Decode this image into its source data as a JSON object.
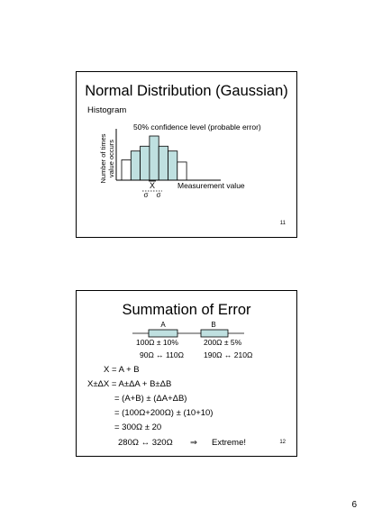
{
  "slide1": {
    "title": "Normal Distribution (Gaussian)",
    "subtitle": "Histogram",
    "annotation": "50% confidence level (probable error)",
    "ylabel_line1": "Number of times",
    "ylabel_line2": "value occurs",
    "xlabel": "Measurement value",
    "mean_symbol": "X",
    "sigma_symbol": "σ",
    "bars": [
      {
        "level": 0.46,
        "shaded": false
      },
      {
        "level": 0.66,
        "shaded": true
      },
      {
        "level": 0.77,
        "shaded": true
      },
      {
        "level": 1.0,
        "shaded": true
      },
      {
        "level": 0.77,
        "shaded": true
      },
      {
        "level": 0.66,
        "shaded": true
      },
      {
        "level": 0.41,
        "shaded": false
      }
    ],
    "colors": {
      "shaded_bar": "#bfe0e0",
      "plain_bar": "#ffffff"
    },
    "slide_number": "11"
  },
  "slide2": {
    "title": "Summation of Error",
    "resistor_a_label": "A",
    "resistor_b_label": "B",
    "resistor_fill": "#bfe0e0",
    "a_value": "100Ω ± 10%",
    "b_value": "200Ω ± 5%",
    "a_range": "90Ω ↔ 110Ω",
    "b_range": "190Ω ↔ 210Ω",
    "lines": [
      "X = A +  B",
      "X±ΔX = A±ΔA +  B±ΔB",
      "= (A+B) ± (ΔA+ΔB)",
      "= (100Ω+200Ω) ± (10+10)",
      "= 300Ω ± 20"
    ],
    "final_range": "280Ω ↔ 320Ω",
    "implies_symbol": "⇒",
    "final_note": "Extreme!",
    "slide_number": "12"
  },
  "page_number": "6"
}
